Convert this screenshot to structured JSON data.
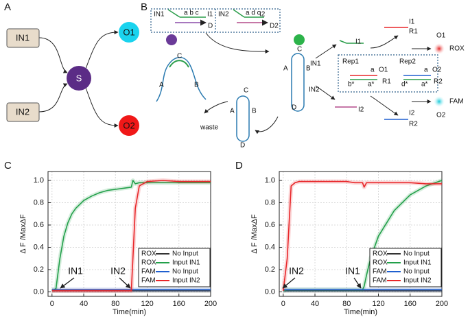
{
  "panel_a": {
    "label": "A",
    "inputs": [
      "IN1",
      "IN2"
    ],
    "hub": "S",
    "outputs": [
      "O1",
      "O2"
    ]
  },
  "panel_b": {
    "label": "B",
    "labels": [
      "IN1",
      "a b c",
      "I1",
      "D",
      "IN2",
      "a d c",
      "I2",
      "D2",
      "C",
      "A",
      "B",
      "waste",
      "C",
      "A",
      "B",
      "D",
      "C",
      "A",
      "B",
      "D",
      "IN1",
      "IN2",
      "I1",
      "I2",
      "Rep1",
      "Rep2",
      "a",
      "O1",
      "R1",
      "b*",
      "a*",
      "a",
      "O2",
      "R2",
      "d*",
      "a*",
      "I1",
      "R1",
      "O1",
      "ROX",
      "I2",
      "R2",
      "FAM",
      "O2"
    ]
  },
  "chart_data": [
    {
      "type": "line",
      "label": "C",
      "xlabel": "Time(min)",
      "ylabel": "Δ F /MaxΔF",
      "xlim": [
        -5,
        200
      ],
      "ylim": [
        -0.04,
        1.08
      ],
      "xticks": [
        0,
        40,
        80,
        120,
        160,
        200
      ],
      "yticks": [
        {
          "value": 0,
          "label": "0.0"
        },
        0.2,
        0.4,
        0.6,
        0.8,
        {
          "value": 1,
          "label": "1.0"
        }
      ],
      "grid": true,
      "annotations": [
        "IN1",
        "IN2"
      ],
      "x": [
        0,
        5,
        10,
        15,
        20,
        25,
        30,
        40,
        50,
        60,
        70,
        80,
        90,
        100,
        102,
        105,
        110,
        120,
        140,
        160,
        180,
        200
      ],
      "series": [
        {
          "channel": "ROX",
          "name": "No Input",
          "color": "#333333",
          "values": [
            0.01,
            0.01,
            0.01,
            0.01,
            0.01,
            0.01,
            0.01,
            0.01,
            0.01,
            0.01,
            0.01,
            0.01,
            0.01,
            0.01,
            0.01,
            0.01,
            0.01,
            0.01,
            0.01,
            0.01,
            0.01,
            0.01
          ]
        },
        {
          "channel": "ROX",
          "name": "Input IN1",
          "color": "#22a04a",
          "values": [
            0.01,
            0.03,
            0.3,
            0.5,
            0.62,
            0.7,
            0.75,
            0.82,
            0.86,
            0.89,
            0.91,
            0.92,
            0.93,
            0.94,
            1.0,
            0.97,
            0.98,
            0.98,
            0.98,
            0.98,
            0.98,
            0.98
          ]
        },
        {
          "channel": "FAM",
          "name": "No Input",
          "color": "#1f5fcf",
          "values": [
            0.02,
            0.02,
            0.02,
            0.02,
            0.02,
            0.02,
            0.02,
            0.02,
            0.02,
            0.02,
            0.02,
            0.02,
            0.02,
            0.02,
            0.02,
            0.02,
            0.02,
            0.02,
            0.02,
            0.02,
            0.02,
            0.02
          ]
        },
        {
          "channel": "FAM",
          "name": "Input IN2",
          "color": "#e8272a",
          "values": [
            0.01,
            0.01,
            0.01,
            0.01,
            0.01,
            0.01,
            0.01,
            0.01,
            0.01,
            0.01,
            0.01,
            0.01,
            0.01,
            0.01,
            0.3,
            0.75,
            0.95,
            0.99,
            1.0,
            0.99,
            0.99,
            0.99
          ]
        }
      ]
    },
    {
      "type": "line",
      "label": "D",
      "xlabel": "Time(min)",
      "ylabel": "Δ F /MaxΔF",
      "xlim": [
        -5,
        200
      ],
      "ylim": [
        -0.04,
        1.08
      ],
      "xticks": [
        0,
        40,
        80,
        120,
        160,
        200
      ],
      "yticks": [
        {
          "value": 0,
          "label": "0.0"
        },
        0.2,
        0.4,
        0.6,
        0.8,
        {
          "value": 1,
          "label": "1.0"
        }
      ],
      "grid": true,
      "annotations": [
        "IN2",
        "IN1"
      ],
      "x": [
        0,
        5,
        10,
        15,
        20,
        25,
        30,
        40,
        50,
        60,
        70,
        80,
        90,
        100,
        102,
        105,
        110,
        120,
        140,
        160,
        180,
        200
      ],
      "series": [
        {
          "channel": "ROX",
          "name": "No Input",
          "color": "#333333",
          "values": [
            0.01,
            0.01,
            0.01,
            0.01,
            0.01,
            0.01,
            0.01,
            0.01,
            0.01,
            0.01,
            0.01,
            0.01,
            0.01,
            0.01,
            0.01,
            0.01,
            0.01,
            0.01,
            0.01,
            0.01,
            0.01,
            0.01
          ]
        },
        {
          "channel": "ROX",
          "name": "Input IN1",
          "color": "#22a04a",
          "values": [
            0.01,
            0.02,
            0.02,
            0.02,
            0.02,
            0.02,
            0.02,
            0.02,
            0.02,
            0.02,
            0.02,
            0.02,
            0.02,
            0.02,
            0.05,
            0.15,
            0.3,
            0.5,
            0.73,
            0.87,
            0.95,
            1.0
          ]
        },
        {
          "channel": "FAM",
          "name": "No Input",
          "color": "#1f5fcf",
          "values": [
            0.02,
            0.02,
            0.02,
            0.02,
            0.02,
            0.02,
            0.02,
            0.02,
            0.02,
            0.02,
            0.02,
            0.02,
            0.02,
            0.02,
            0.02,
            0.02,
            0.02,
            0.02,
            0.02,
            0.02,
            0.02,
            0.02
          ]
        },
        {
          "channel": "FAM",
          "name": "Input IN2",
          "color": "#e8272a",
          "values": [
            0.01,
            0.3,
            0.95,
            0.98,
            0.99,
            0.99,
            0.99,
            0.99,
            0.99,
            0.99,
            0.99,
            0.99,
            0.98,
            0.98,
            0.94,
            0.98,
            0.98,
            0.98,
            0.98,
            0.98,
            0.97,
            0.97
          ]
        }
      ]
    }
  ]
}
